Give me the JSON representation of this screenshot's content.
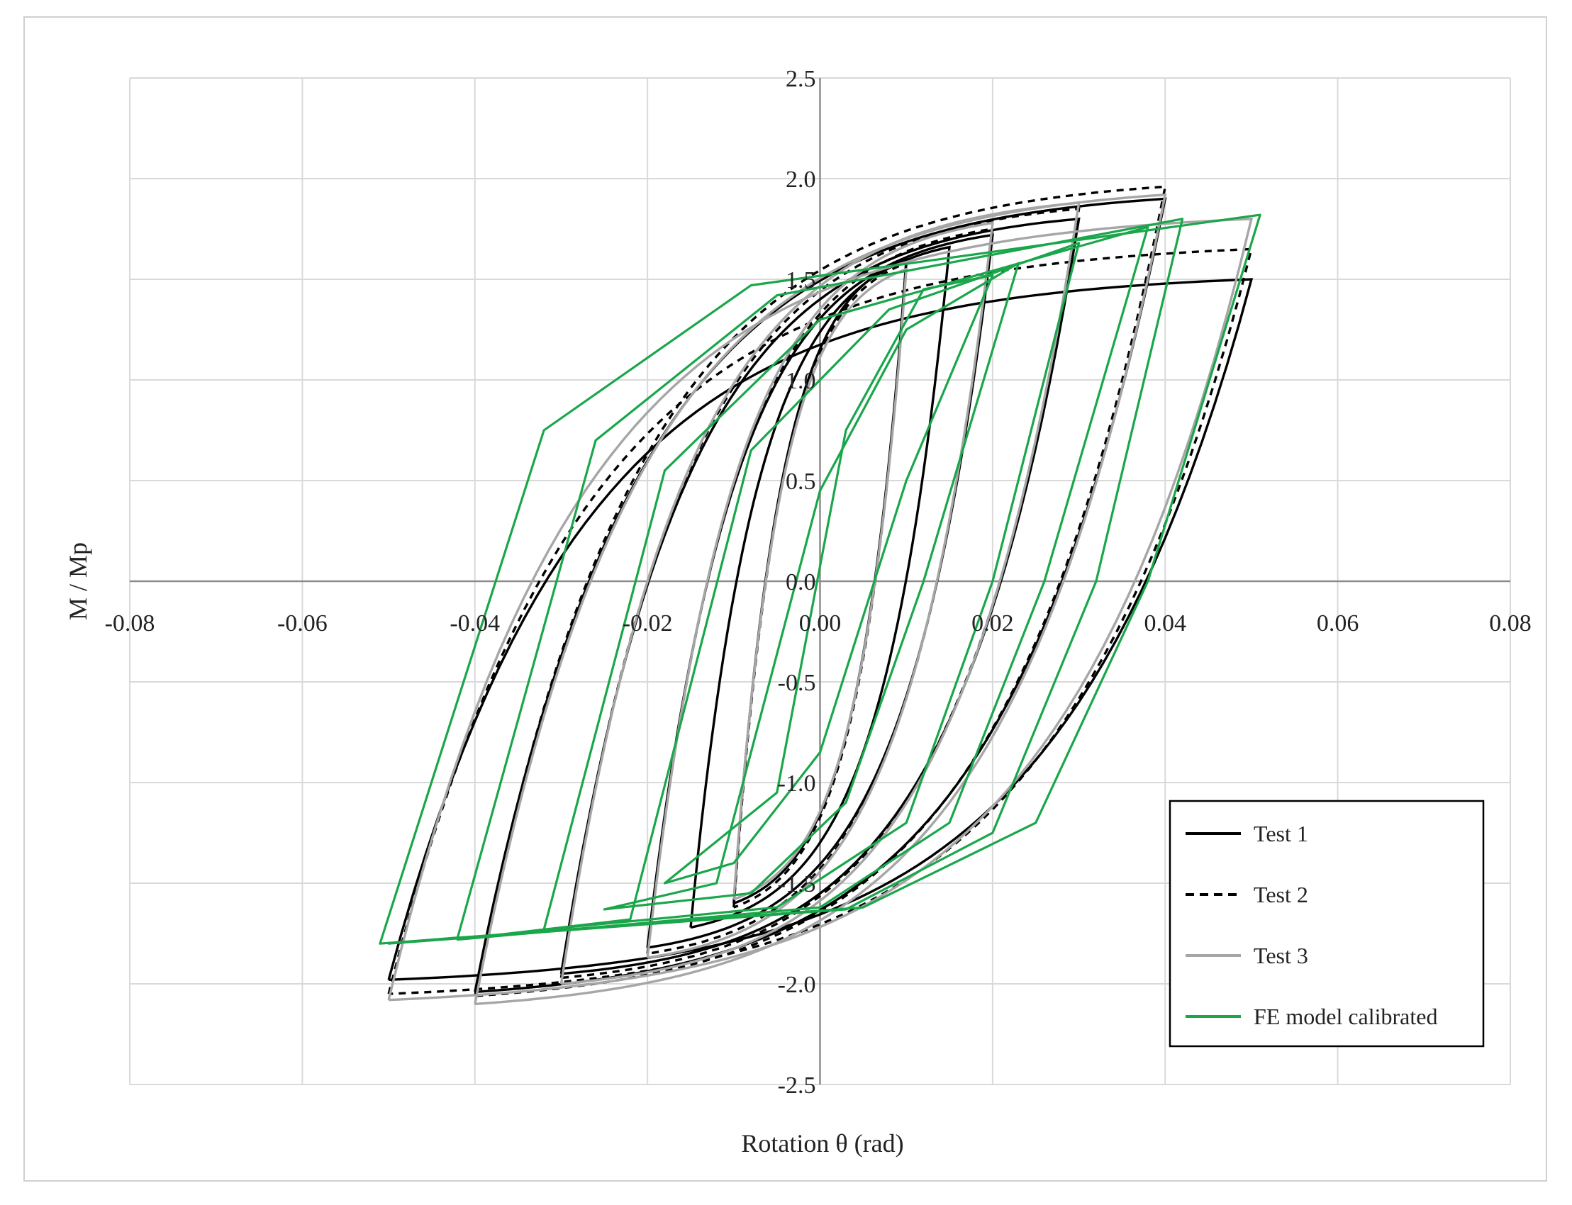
{
  "chart_data": {
    "type": "line",
    "title": "",
    "xlabel": "Rotation θ (rad)",
    "ylabel": "M / Mp",
    "xlim": [
      -0.08,
      0.08
    ],
    "ylim": [
      -2.5,
      2.5
    ],
    "x_ticks": [
      -0.08,
      -0.06,
      -0.04,
      -0.02,
      0.0,
      0.02,
      0.04,
      0.06,
      0.08
    ],
    "x_tick_labels": [
      "-0.08",
      "-0.06",
      "-0.04",
      "-0.02",
      "0.00",
      "0.02",
      "0.04",
      "0.06",
      "0.08"
    ],
    "y_ticks": [
      -2.5,
      -2.0,
      -1.5,
      -1.0,
      -0.5,
      0.0,
      0.5,
      1.0,
      1.5,
      2.0,
      2.5
    ],
    "y_tick_labels": [
      "-2.5",
      "-2.0",
      "-1.5",
      "-1.0",
      "-0.5",
      "0.0",
      "0.5",
      "1.0",
      "1.5",
      "2.0",
      "2.5"
    ],
    "grid": true,
    "legend_position": "bottom-right",
    "series": [
      {
        "name": "Test 1",
        "color": "#000000",
        "style": "solid",
        "loops": [
          {
            "amp": 0.01,
            "ypos": 1.6,
            "yneg": -1.6,
            "elastic": 0.004,
            "min": 0.15
          },
          {
            "amp": 0.015,
            "ypos": 1.66,
            "yneg": -1.72,
            "elastic": 0.005,
            "min": 0.18
          },
          {
            "amp": 0.02,
            "ypos": 1.72,
            "yneg": -1.82,
            "elastic": 0.0055,
            "min": 0.22
          },
          {
            "amp": 0.03,
            "ypos": 1.8,
            "yneg": -1.95,
            "elastic": 0.006,
            "min": 0.27
          },
          {
            "amp": 0.04,
            "ypos": 1.9,
            "yneg": -2.04,
            "elastic": 0.0065,
            "min": 0.3
          },
          {
            "amp": 0.05,
            "ypos": 1.5,
            "yneg": -1.98,
            "elastic": 0.007,
            "min": 0.3
          }
        ]
      },
      {
        "name": "Test 2",
        "color": "#000000",
        "style": "dashed",
        "loops": [
          {
            "amp": 0.01,
            "ypos": 1.58,
            "yneg": -1.62,
            "elastic": 0.004,
            "min": 0.15
          },
          {
            "amp": 0.02,
            "ypos": 1.75,
            "yneg": -1.85,
            "elastic": 0.0055,
            "min": 0.22
          },
          {
            "amp": 0.03,
            "ypos": 1.85,
            "yneg": -1.97,
            "elastic": 0.006,
            "min": 0.27
          },
          {
            "amp": 0.04,
            "ypos": 1.96,
            "yneg": -2.06,
            "elastic": 0.0065,
            "min": 0.3
          },
          {
            "amp": 0.05,
            "ypos": 1.65,
            "yneg": -2.05,
            "elastic": 0.007,
            "min": 0.3
          }
        ]
      },
      {
        "name": "Test 3",
        "color": "#a6a6a6",
        "style": "solid",
        "loops": [
          {
            "amp": 0.01,
            "ypos": 1.55,
            "yneg": -1.58,
            "elastic": 0.004,
            "min": 0.15
          },
          {
            "amp": 0.02,
            "ypos": 1.78,
            "yneg": -1.87,
            "elastic": 0.0055,
            "min": 0.22
          },
          {
            "amp": 0.03,
            "ypos": 1.88,
            "yneg": -2.0,
            "elastic": 0.006,
            "min": 0.27
          },
          {
            "amp": 0.04,
            "ypos": 1.92,
            "yneg": -2.1,
            "elastic": 0.0065,
            "min": 0.3
          },
          {
            "amp": 0.05,
            "ypos": 1.8,
            "yneg": -2.08,
            "elastic": 0.007,
            "min": 0.3
          }
        ]
      },
      {
        "name": "FE model calibrated",
        "color": "#1aa64a",
        "style": "solid",
        "polygons": [
          [
            [
              -0.005,
              -1.05
            ],
            [
              0.003,
              0.75
            ],
            [
              0.012,
              1.45
            ],
            [
              0.02,
              1.52
            ],
            [
              0.01,
              0.5
            ],
            [
              0.0,
              -0.85
            ],
            [
              -0.01,
              -1.4
            ],
            [
              -0.018,
              -1.5
            ]
          ],
          [
            [
              -0.012,
              -1.5
            ],
            [
              0.0,
              0.45
            ],
            [
              0.01,
              1.25
            ],
            [
              0.023,
              1.58
            ],
            [
              0.012,
              0.0
            ],
            [
              0.003,
              -1.1
            ],
            [
              -0.008,
              -1.55
            ],
            [
              -0.025,
              -1.63
            ]
          ],
          [
            [
              -0.022,
              -1.68
            ],
            [
              -0.008,
              0.65
            ],
            [
              0.008,
              1.35
            ],
            [
              0.03,
              1.68
            ],
            [
              0.02,
              0.0
            ],
            [
              0.01,
              -1.2
            ],
            [
              -0.005,
              -1.62
            ],
            [
              -0.032,
              -1.73
            ]
          ],
          [
            [
              -0.032,
              -1.73
            ],
            [
              -0.018,
              0.55
            ],
            [
              0.0,
              1.3
            ],
            [
              0.038,
              1.76
            ],
            [
              0.026,
              0.0
            ],
            [
              0.015,
              -1.2
            ],
            [
              0.0,
              -1.62
            ],
            [
              -0.042,
              -1.78
            ]
          ],
          [
            [
              -0.042,
              -1.77
            ],
            [
              -0.026,
              0.7
            ],
            [
              -0.005,
              1.42
            ],
            [
              0.042,
              1.8
            ],
            [
              0.032,
              0.0
            ],
            [
              0.02,
              -1.25
            ],
            [
              0.003,
              -1.63
            ],
            [
              -0.05,
              -1.8
            ]
          ],
          [
            [
              -0.051,
              -1.8
            ],
            [
              -0.032,
              0.75
            ],
            [
              -0.008,
              1.47
            ],
            [
              0.051,
              1.82
            ],
            [
              0.038,
              0.0
            ],
            [
              0.025,
              -1.2
            ],
            [
              0.005,
              -1.62
            ],
            [
              -0.051,
              -1.8
            ]
          ]
        ]
      }
    ]
  }
}
